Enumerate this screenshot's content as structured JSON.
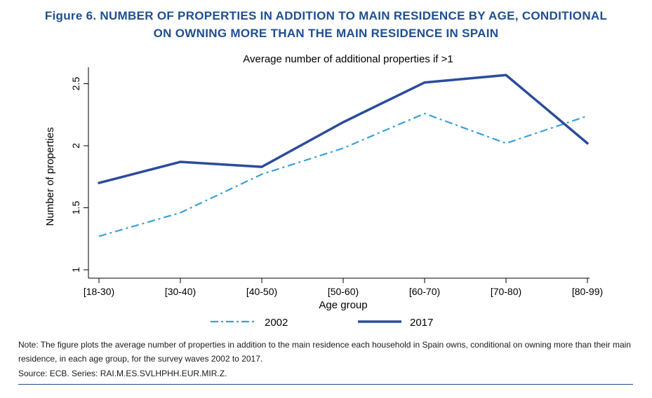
{
  "figure": {
    "title_line1": "Figure 6. NUMBER OF PROPERTIES IN ADDITION TO MAIN RESIDENCE BY AGE, CONDITIONAL",
    "title_line2": "ON OWNING MORE THAN THE MAIN RESIDENCE IN SPAIN",
    "note": "Note: The figure plots the average number of properties in addition to the main residence each household in Spain owns, conditional on owning more than their main residence, in each age group, for the survey waves 2002 to 2017.",
    "source": "Source: ECB. Series: RAI.M.ES.SVLHPHH.EUR.MIR.Z."
  },
  "chart_data": {
    "type": "line",
    "subtitle": "Average number of additional properties if >1",
    "xlabel": "Age group",
    "ylabel": "Number of properties",
    "categories": [
      "[18-30)",
      "[30-40)",
      "[40-50)",
      "[50-60)",
      "[60-70)",
      "[70-80)",
      "[80-99)"
    ],
    "ylim": [
      1,
      2.6
    ],
    "yticks": [
      1,
      1.5,
      2,
      2.5
    ],
    "ytick_labels": [
      "1",
      "1.5",
      "2",
      "2.5"
    ],
    "grid": false,
    "legend_position": "bottom",
    "series": [
      {
        "name": "2002",
        "style": "dashed",
        "color": "#3aa0d8",
        "values": [
          1.27,
          1.46,
          1.77,
          1.98,
          2.26,
          2.02,
          2.24
        ]
      },
      {
        "name": "2017",
        "style": "solid",
        "color": "#2b4c9b",
        "values": [
          1.7,
          1.87,
          1.83,
          2.19,
          2.51,
          2.57,
          2.02
        ]
      }
    ]
  }
}
